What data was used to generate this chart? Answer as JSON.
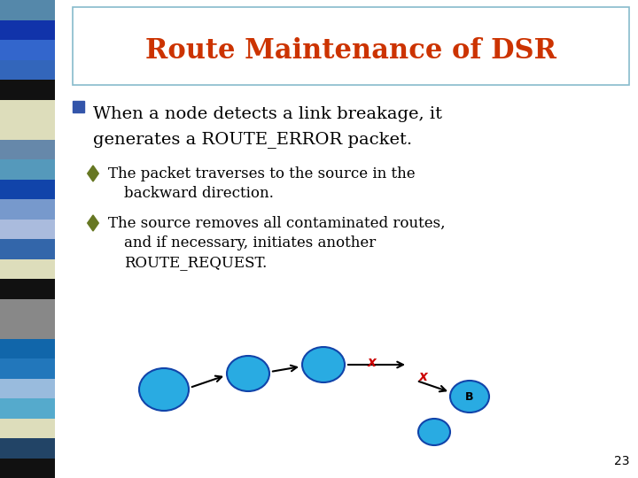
{
  "title": "Route Maintenance of DSR",
  "title_color": "#CC3300",
  "title_fontsize": 22,
  "bg_color": "#FFFFFF",
  "slide_border_color": "#88BBCC",
  "left_bar_colors": [
    "#5588AA",
    "#1133AA",
    "#3366CC",
    "#3366BB",
    "#111111",
    "#DDDDBB",
    "#DDDDBB",
    "#6688AA",
    "#5599BB",
    "#1144AA",
    "#7799CC",
    "#AABBDD",
    "#3366AA",
    "#DDDDBB",
    "#111111",
    "#888888",
    "#888888",
    "#1166AA",
    "#2277BB",
    "#99BBDD",
    "#55AACC",
    "#DDDDBB",
    "#224466",
    "#111111"
  ],
  "bullet_color": "#3355AA",
  "text_color": "#000000",
  "sub_bullet_color": "#667722",
  "main_bullet_text1": "When a node detects a link breakage, it",
  "main_bullet_text2": "generates a ROUTE_ERROR packet.",
  "sub_bullet1_line1": "The packet traverses to the source in the",
  "sub_bullet1_line2": "backward direction.",
  "sub_bullet2_line1": "The source removes all contaminated routes,",
  "sub_bullet2_line2": "and if necessary, initiates another",
  "sub_bullet2_line3": "ROUTE_REQUEST.",
  "node_color": "#29ABE2",
  "node_border_color": "#1144AA",
  "arrow_color": "#000000",
  "x_mark_color": "#CC0000",
  "page_num": "23"
}
